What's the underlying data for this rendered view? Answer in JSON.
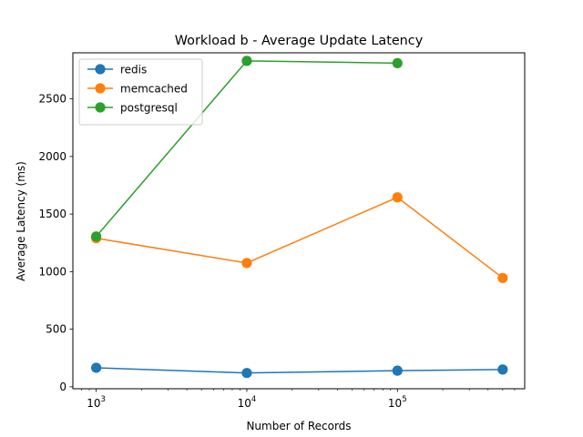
{
  "chart_data": {
    "type": "line",
    "title": "Workload b - Average Update Latency",
    "xlabel": "Number of Records",
    "ylabel": "Average Latency (ms)",
    "xscale": "log",
    "xlim": [
      700,
      700000
    ],
    "ylim": [
      -17,
      2900
    ],
    "yticks": [
      0,
      500,
      1000,
      1500,
      2000,
      2500
    ],
    "xticks": [
      {
        "value": 1000,
        "base": "10",
        "exp": "3"
      },
      {
        "value": 10000,
        "base": "10",
        "exp": "4"
      },
      {
        "value": 100000,
        "base": "10",
        "exp": "5"
      }
    ],
    "legend_position": "top-left",
    "grid": false,
    "series": [
      {
        "name": "redis",
        "color": "#1f77b4",
        "x": [
          1000,
          10000,
          100000,
          500000
        ],
        "values": [
          165,
          120,
          140,
          150
        ]
      },
      {
        "name": "memcached",
        "color": "#ff7f0e",
        "x": [
          1000,
          10000,
          100000,
          500000
        ],
        "values": [
          1290,
          1075,
          1645,
          945
        ]
      },
      {
        "name": "postgresql",
        "color": "#2ca02c",
        "x": [
          1000,
          10000,
          100000
        ],
        "values": [
          1305,
          2830,
          2810
        ]
      }
    ]
  }
}
